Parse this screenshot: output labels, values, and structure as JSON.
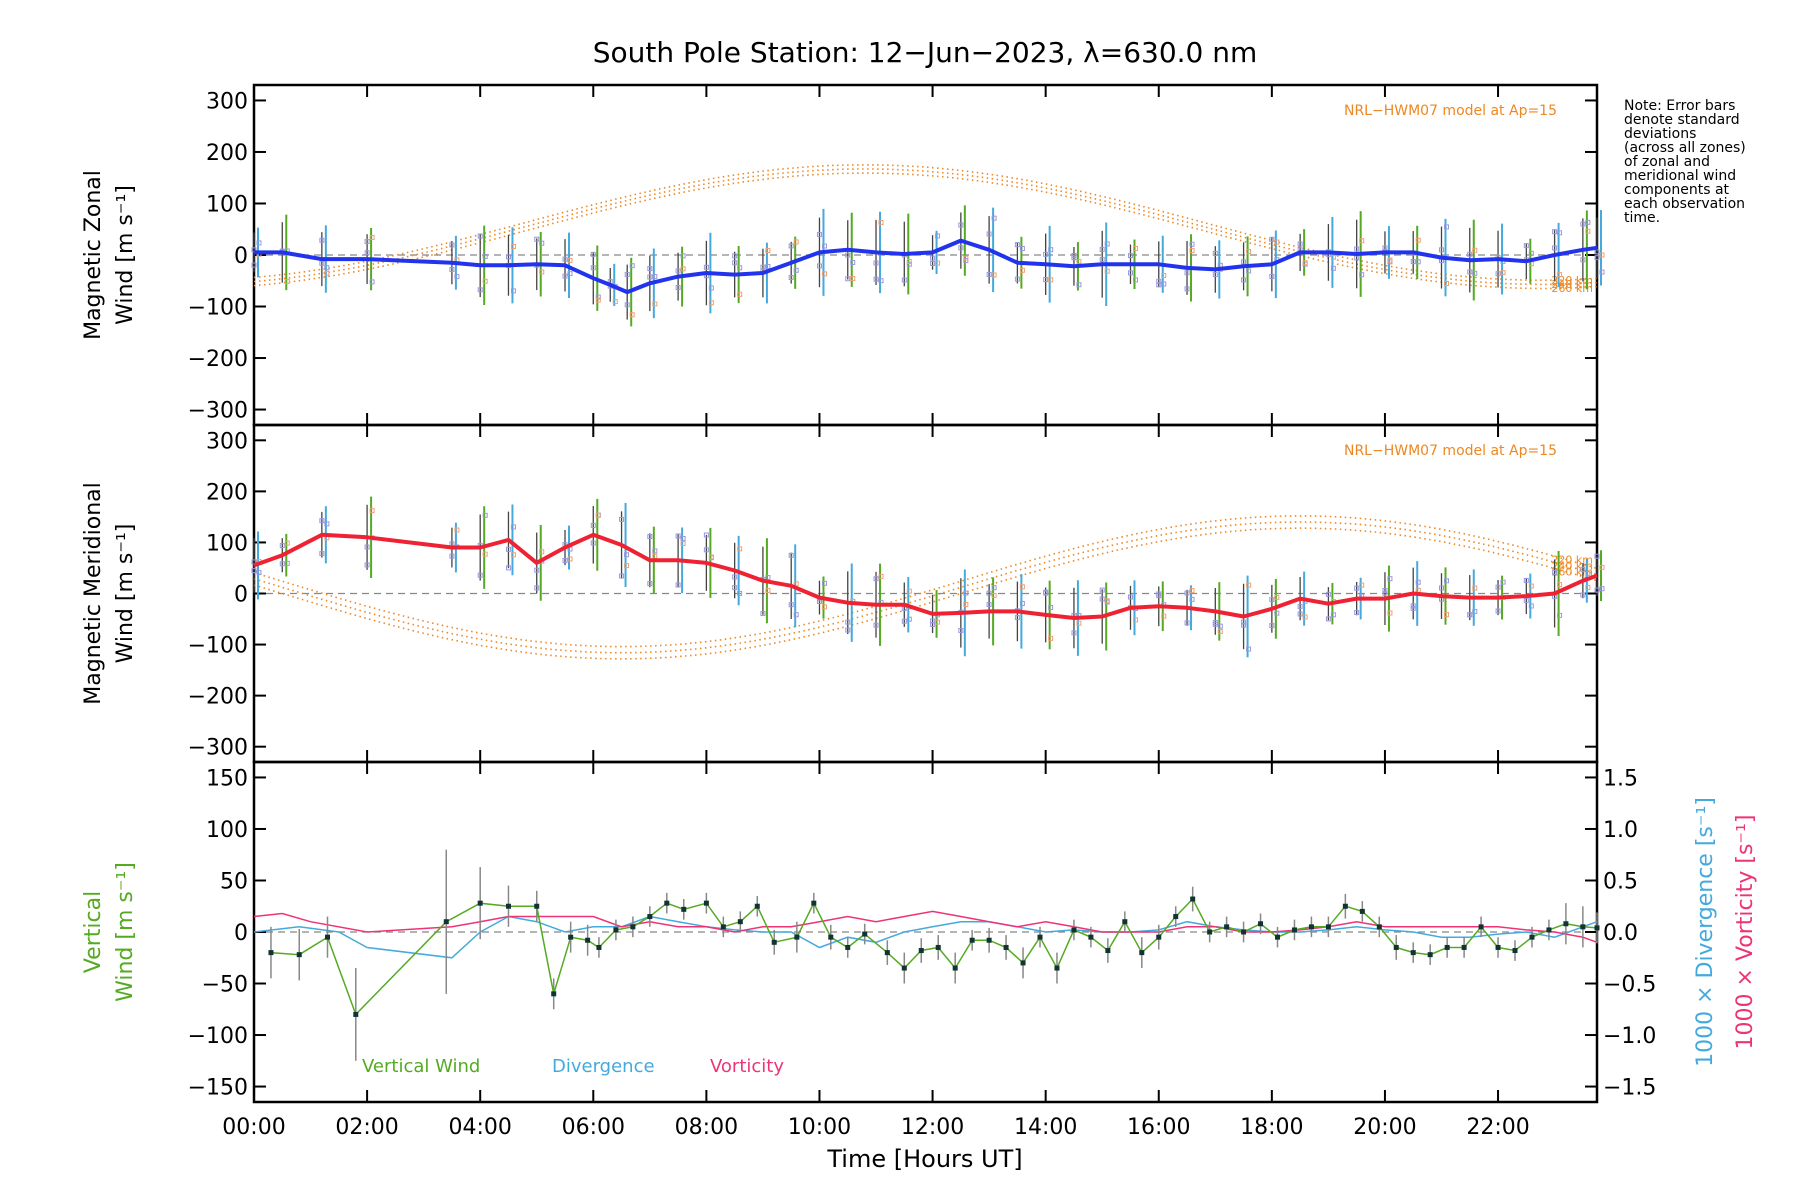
{
  "title": "South Pole Station: 12−Jun−2023, λ=630.0 nm",
  "note": [
    "Note: Error bars",
    "denote standard",
    "deviations",
    "(across all zones)",
    "of zonal and",
    "meridional wind",
    "components at",
    "each observation",
    "time."
  ],
  "colors": {
    "zonal": "#2233ee",
    "meridional": "#ee2233",
    "vertical": "#55aa22",
    "divergence": "#44aadd",
    "vorticity": "#ee3377",
    "model": "#ee8822",
    "axis": "#000000",
    "zero": "#888888",
    "samples": "#9999dd",
    "marker": "#113333"
  },
  "x_axis": {
    "label": "Time [Hours UT]",
    "range": [
      0,
      23.75
    ],
    "ticks": [
      0,
      2,
      4,
      6,
      8,
      10,
      12,
      14,
      16,
      18,
      20,
      22
    ],
    "tick_labels": [
      "00:00",
      "02:00",
      "04:00",
      "06:00",
      "08:00",
      "10:00",
      "12:00",
      "14:00",
      "16:00",
      "18:00",
      "20:00",
      "22:00"
    ]
  },
  "chart_data": [
    {
      "type": "line",
      "id": "zonal",
      "ylabel_line1": "Magnetic Zonal",
      "ylabel_line2": "Wind [m s⁻¹]",
      "ylim": [
        -330,
        330
      ],
      "yticks": [
        -300,
        -200,
        -100,
        0,
        100,
        200,
        300
      ],
      "ytick_labels": [
        "−300",
        "−200",
        "−100",
        "0",
        "100",
        "200",
        "300"
      ],
      "model_label": "NRL−HWM07 model at Ap=15",
      "model_alt_labels": [
        "220 km",
        "240 km",
        "260 km"
      ],
      "model_params": {
        "offset": 55,
        "amplitude": 112,
        "peak_hour": 10.8,
        "alt_offsets": [
          8,
          0,
          -8
        ]
      },
      "series": [
        {
          "name": "Zonal Wind",
          "x": [
            0,
            0.5,
            1.2,
            2,
            3.5,
            4,
            4.5,
            5,
            5.5,
            6,
            6.3,
            6.6,
            7,
            7.5,
            8,
            8.5,
            9,
            9.5,
            10,
            10.5,
            11,
            11.5,
            12,
            12.5,
            13,
            13.5,
            14,
            14.5,
            15,
            15.5,
            16,
            16.5,
            17,
            17.5,
            18,
            18.5,
            19,
            19.5,
            20,
            20.5,
            21,
            21.5,
            22,
            22.5,
            23,
            23.5,
            23.75
          ],
          "y": [
            5,
            5,
            -8,
            -8,
            -15,
            -20,
            -20,
            -18,
            -20,
            -45,
            -58,
            -72,
            -55,
            -42,
            -35,
            -38,
            -35,
            -15,
            5,
            10,
            5,
            2,
            5,
            28,
            10,
            -15,
            -18,
            -22,
            -18,
            -18,
            -18,
            -25,
            -28,
            -22,
            -18,
            5,
            5,
            2,
            5,
            5,
            -5,
            -10,
            -8,
            -12,
            0,
            10,
            14
          ]
        }
      ]
    },
    {
      "type": "line",
      "id": "meridional",
      "ylabel_line1": "Magnetic Meridional",
      "ylabel_line2": "Wind [m s⁻¹]",
      "ylim": [
        -330,
        330
      ],
      "yticks": [
        -300,
        -200,
        -100,
        0,
        100,
        200,
        300
      ],
      "ytick_labels": [
        "−300",
        "−200",
        "−100",
        "0",
        "100",
        "200",
        "300"
      ],
      "model_label": "NRL−HWM07 model at Ap=15",
      "model_alt_labels": [
        "220 km",
        "240 km",
        "260 km"
      ],
      "model_params": {
        "offset": 12,
        "amplitude": 128,
        "peak_hour": 18.5,
        "alt_offsets": [
          12,
          0,
          -12
        ]
      },
      "series": [
        {
          "name": "Meridional Wind",
          "x": [
            0,
            0.5,
            1.2,
            2,
            3.5,
            4,
            4.5,
            5,
            5.5,
            6,
            6.5,
            7,
            7.5,
            8,
            8.5,
            9,
            9.5,
            10,
            10.5,
            11,
            11.5,
            12,
            12.5,
            13,
            13.5,
            14,
            14.5,
            15,
            15.5,
            16,
            16.5,
            17,
            17.5,
            18,
            18.5,
            19,
            19.5,
            20,
            20.5,
            21,
            21.5,
            22,
            22.5,
            23,
            23.5,
            23.75
          ],
          "y": [
            55,
            75,
            115,
            110,
            90,
            90,
            105,
            60,
            90,
            115,
            95,
            65,
            65,
            60,
            45,
            25,
            15,
            -8,
            -18,
            -22,
            -22,
            -40,
            -38,
            -35,
            -35,
            -42,
            -48,
            -45,
            -28,
            -25,
            -28,
            -35,
            -45,
            -30,
            -10,
            -20,
            -10,
            -10,
            0,
            -5,
            -8,
            -8,
            -5,
            0,
            25,
            35
          ]
        }
      ]
    },
    {
      "type": "line",
      "id": "vertical",
      "ylabel_line1": "Vertical",
      "ylabel_line2": "Wind [m s⁻¹]",
      "ylim": [
        -165,
        165
      ],
      "yticks": [
        -150,
        -100,
        -50,
        0,
        50,
        100,
        150
      ],
      "ytick_labels": [
        "−150",
        "−100",
        "−50",
        "0",
        "50",
        "100",
        "150"
      ],
      "right_axis": {
        "ylim": [
          -1.65,
          1.65
        ],
        "yticks": [
          -1.5,
          -1.0,
          -0.5,
          0.0,
          0.5,
          1.0,
          1.5
        ],
        "ytick_labels": [
          "−1.5",
          "−1.0",
          "−0.5",
          "0.0",
          "0.5",
          "1.0",
          "1.5"
        ],
        "label_divergence": "1000 × Divergence [s⁻¹]",
        "label_vorticity": "1000 × Vorticity [s⁻¹]"
      },
      "legend": [
        "Vertical Wind",
        "Divergence",
        "Vorticity"
      ],
      "series": [
        {
          "name": "Vertical Wind",
          "x": [
            0.3,
            0.8,
            1.3,
            1.8,
            3.4,
            4,
            4.5,
            5,
            5.3,
            5.6,
            5.9,
            6.1,
            6.4,
            6.7,
            7,
            7.3,
            7.6,
            8,
            8.3,
            8.6,
            8.9,
            9.2,
            9.6,
            9.9,
            10.2,
            10.5,
            10.8,
            11.2,
            11.5,
            11.8,
            12.1,
            12.4,
            12.7,
            13,
            13.3,
            13.6,
            13.9,
            14.2,
            14.5,
            14.8,
            15.1,
            15.4,
            15.7,
            16,
            16.3,
            16.6,
            16.9,
            17.2,
            17.5,
            17.8,
            18.1,
            18.4,
            18.7,
            19,
            19.3,
            19.6,
            19.9,
            20.2,
            20.5,
            20.8,
            21.1,
            21.4,
            21.7,
            22,
            22.3,
            22.6,
            22.9,
            23.2,
            23.5,
            23.75
          ],
          "y": [
            -20,
            -22,
            -5,
            -80,
            10,
            28,
            25,
            25,
            -60,
            -5,
            -8,
            -15,
            2,
            5,
            15,
            28,
            22,
            28,
            5,
            10,
            25,
            -10,
            -5,
            28,
            -5,
            -15,
            -2,
            -20,
            -35,
            -18,
            -15,
            -35,
            -8,
            -8,
            -15,
            -30,
            -5,
            -35,
            2,
            -5,
            -18,
            10,
            -20,
            -5,
            15,
            32,
            0,
            5,
            0,
            8,
            -5,
            2,
            5,
            5,
            25,
            20,
            5,
            -15,
            -20,
            -22,
            -15,
            -15,
            5,
            -15,
            -18,
            -5,
            2,
            8,
            5,
            4
          ],
          "err": [
            25,
            25,
            20,
            45,
            70,
            35,
            20,
            15,
            15,
            15,
            15,
            10,
            10,
            10,
            10,
            10,
            10,
            10,
            10,
            10,
            10,
            12,
            15,
            10,
            12,
            10,
            10,
            12,
            15,
            12,
            12,
            15,
            10,
            12,
            12,
            15,
            10,
            15,
            10,
            10,
            12,
            10,
            15,
            12,
            10,
            12,
            10,
            10,
            10,
            10,
            10,
            10,
            10,
            10,
            12,
            10,
            10,
            12,
            10,
            10,
            10,
            10,
            10,
            10,
            10,
            10,
            10,
            20,
            20,
            15
          ]
        },
        {
          "name": "Divergence",
          "x": [
            0,
            0.8,
            1.5,
            2,
            3.5,
            4,
            4.5,
            5,
            5.5,
            6,
            6.5,
            7,
            7.5,
            8,
            8.5,
            9,
            9.5,
            10,
            10.5,
            11,
            11.5,
            12,
            12.5,
            13,
            13.5,
            14,
            14.5,
            15,
            15.5,
            16,
            16.5,
            17,
            17.5,
            18,
            18.5,
            19,
            19.5,
            20,
            20.5,
            21,
            21.5,
            22,
            22.5,
            23,
            23.5,
            23.75
          ],
          "y": [
            0,
            0.05,
            0.0,
            -0.15,
            -0.25,
            0.0,
            0.15,
            0.1,
            0.0,
            0.05,
            0.05,
            0.15,
            0.1,
            0.05,
            0.02,
            0.0,
            0.0,
            -0.15,
            -0.05,
            -0.1,
            0.0,
            0.05,
            0.1,
            0.1,
            0.05,
            0.0,
            0.02,
            0.0,
            0.0,
            0.02,
            0.1,
            0.05,
            0.02,
            0.0,
            0.0,
            0.02,
            0.05,
            0.02,
            0.0,
            -0.05,
            -0.05,
            -0.02,
            0.0,
            -0.05,
            0.05,
            0.1
          ]
        },
        {
          "name": "Vorticity",
          "x": [
            0,
            0.5,
            1,
            2,
            3.5,
            4,
            4.5,
            5,
            5.5,
            6,
            6.5,
            7,
            7.5,
            8,
            8.5,
            9,
            9.5,
            10,
            10.5,
            11,
            11.5,
            12,
            12.5,
            13,
            13.5,
            14,
            14.5,
            15,
            15.5,
            16,
            16.5,
            17,
            17.5,
            18,
            18.5,
            19,
            19.5,
            20,
            20.5,
            21,
            21.5,
            22,
            22.5,
            23,
            23.5,
            23.75
          ],
          "y": [
            0.15,
            0.18,
            0.1,
            0.0,
            0.05,
            0.1,
            0.15,
            0.15,
            0.15,
            0.15,
            0.05,
            0.1,
            0.05,
            0.05,
            0.0,
            0.05,
            0.05,
            0.1,
            0.15,
            0.1,
            0.15,
            0.2,
            0.15,
            0.1,
            0.05,
            0.1,
            0.05,
            0.0,
            0.0,
            0.0,
            0.05,
            0.05,
            0.0,
            0.0,
            0.02,
            0.05,
            0.1,
            0.05,
            0.05,
            0.05,
            0.05,
            0.05,
            0.02,
            0.0,
            -0.05,
            -0.1
          ]
        }
      ]
    }
  ]
}
